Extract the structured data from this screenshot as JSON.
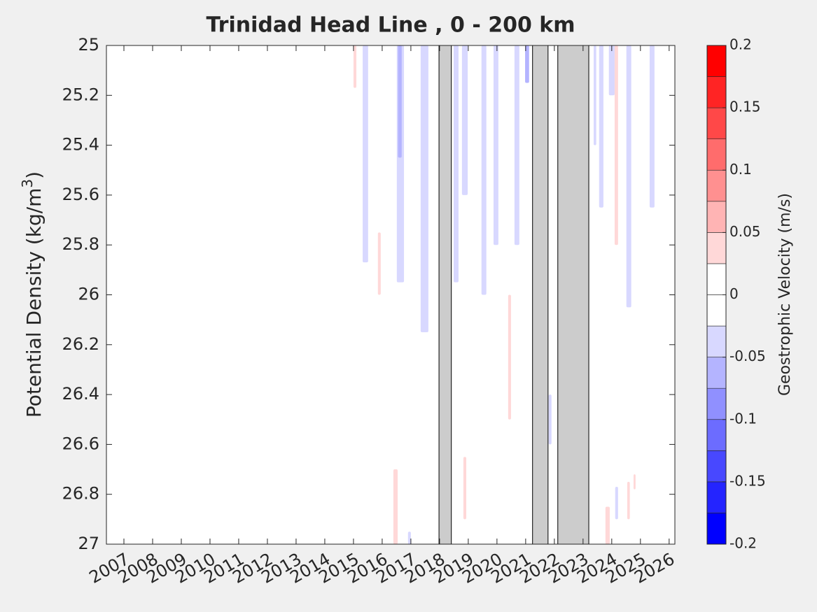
{
  "chart_data": {
    "type": "heatmap",
    "title": "Trinidad Head Line , 0 - 200 km",
    "ylabel": [
      "Potential Density (kg/m",
      "3",
      ")"
    ],
    "xlim": [
      2006.39,
      2026.2
    ],
    "xticks": [
      2007,
      2008,
      2009,
      2010,
      2011,
      2012,
      2013,
      2014,
      2015,
      2016,
      2017,
      2018,
      2019,
      2020,
      2021,
      2022,
      2023,
      2024,
      2025,
      2026
    ],
    "ylim": [
      25,
      27
    ],
    "y_reversed": true,
    "yticks": [
      25,
      25.2,
      25.4,
      25.6,
      25.8,
      26,
      26.2,
      26.4,
      26.6,
      26.8,
      27
    ],
    "gap_color": "#cccccc",
    "gaps": [
      [
        2017.98,
        2018.41
      ],
      [
        2021.24,
        2021.78
      ],
      [
        2022.12,
        2023.2
      ]
    ],
    "cells": [
      {
        "x0": 2015.0,
        "x1": 2015.1,
        "y0": 25,
        "y1": 25.17,
        "value": 0.03
      },
      {
        "x0": 2015.32,
        "x1": 2015.51,
        "y0": 25,
        "y1": 25.87,
        "value": -0.03
      },
      {
        "x0": 2015.85,
        "x1": 2015.95,
        "y0": 25.75,
        "y1": 26.0,
        "value": 0.03
      },
      {
        "x0": 2016.51,
        "x1": 2016.76,
        "y0": 25,
        "y1": 25.95,
        "value": -0.03
      },
      {
        "x0": 2016.55,
        "x1": 2016.68,
        "y0": 25,
        "y1": 25.45,
        "value": -0.06
      },
      {
        "x0": 2016.39,
        "x1": 2016.54,
        "y0": 26.7,
        "y1": 27,
        "value": 0.03
      },
      {
        "x0": 2017.34,
        "x1": 2017.61,
        "y0": 25,
        "y1": 26.15,
        "value": -0.03
      },
      {
        "x0": 2016.9,
        "x1": 2017.0,
        "y0": 26.95,
        "y1": 27,
        "value": -0.05
      },
      {
        "x0": 2018.49,
        "x1": 2018.66,
        "y0": 25,
        "y1": 25.95,
        "value": -0.03
      },
      {
        "x0": 2018.78,
        "x1": 2018.98,
        "y0": 25,
        "y1": 25.6,
        "value": -0.05
      },
      {
        "x0": 2018.83,
        "x1": 2018.93,
        "y0": 26.65,
        "y1": 26.9,
        "value": 0.03
      },
      {
        "x0": 2019.46,
        "x1": 2019.63,
        "y0": 25,
        "y1": 26.0,
        "value": -0.03
      },
      {
        "x0": 2019.88,
        "x1": 2020.05,
        "y0": 25,
        "y1": 25.8,
        "value": -0.03
      },
      {
        "x0": 2020.39,
        "x1": 2020.49,
        "y0": 26.0,
        "y1": 26.5,
        "value": 0.03
      },
      {
        "x0": 2020.61,
        "x1": 2020.78,
        "y0": 25,
        "y1": 25.8,
        "value": -0.03
      },
      {
        "x0": 2020.98,
        "x1": 2021.12,
        "y0": 25,
        "y1": 25.15,
        "value": -0.07
      },
      {
        "x0": 2021.8,
        "x1": 2021.9,
        "y0": 26.4,
        "y1": 26.6,
        "value": -0.03
      },
      {
        "x0": 2023.37,
        "x1": 2023.46,
        "y0": 25,
        "y1": 25.4,
        "value": -0.03
      },
      {
        "x0": 2023.56,
        "x1": 2023.71,
        "y0": 25,
        "y1": 25.65,
        "value": -0.03
      },
      {
        "x0": 2023.78,
        "x1": 2023.93,
        "y0": 26.85,
        "y1": 27,
        "value": 0.04
      },
      {
        "x0": 2023.9,
        "x1": 2024.1,
        "y0": 25,
        "y1": 25.2,
        "value": -0.04
      },
      {
        "x0": 2024.1,
        "x1": 2024.22,
        "y0": 25,
        "y1": 25.8,
        "value": 0.04
      },
      {
        "x0": 2024.12,
        "x1": 2024.22,
        "y0": 26.77,
        "y1": 26.9,
        "value": -0.05
      },
      {
        "x0": 2024.51,
        "x1": 2024.68,
        "y0": 25,
        "y1": 26.05,
        "value": -0.05
      },
      {
        "x0": 2024.54,
        "x1": 2024.63,
        "y0": 26.75,
        "y1": 26.9,
        "value": 0.04
      },
      {
        "x0": 2024.76,
        "x1": 2024.83,
        "y0": 26.72,
        "y1": 26.78,
        "value": 0.03
      },
      {
        "x0": 2025.32,
        "x1": 2025.49,
        "y0": 25,
        "y1": 25.65,
        "value": -0.03
      }
    ],
    "colorbar": {
      "label": "Geostrophic Velocity (m/s)",
      "lim": [
        -0.2,
        0.2
      ],
      "ticks": [
        -0.2,
        -0.15,
        -0.1,
        -0.05,
        0,
        0.05,
        0.1,
        0.15,
        0.2
      ],
      "colors": [
        "#0000ff",
        "#2424ff",
        "#4848ff",
        "#6c6cff",
        "#9090ff",
        "#b4b4ff",
        "#d8d8ff",
        "#ffffff",
        "#ffffff",
        "#ffd8d8",
        "#ffb4b4",
        "#ff9090",
        "#ff6c6c",
        "#ff4848",
        "#ff2424",
        "#ff0000"
      ]
    }
  }
}
